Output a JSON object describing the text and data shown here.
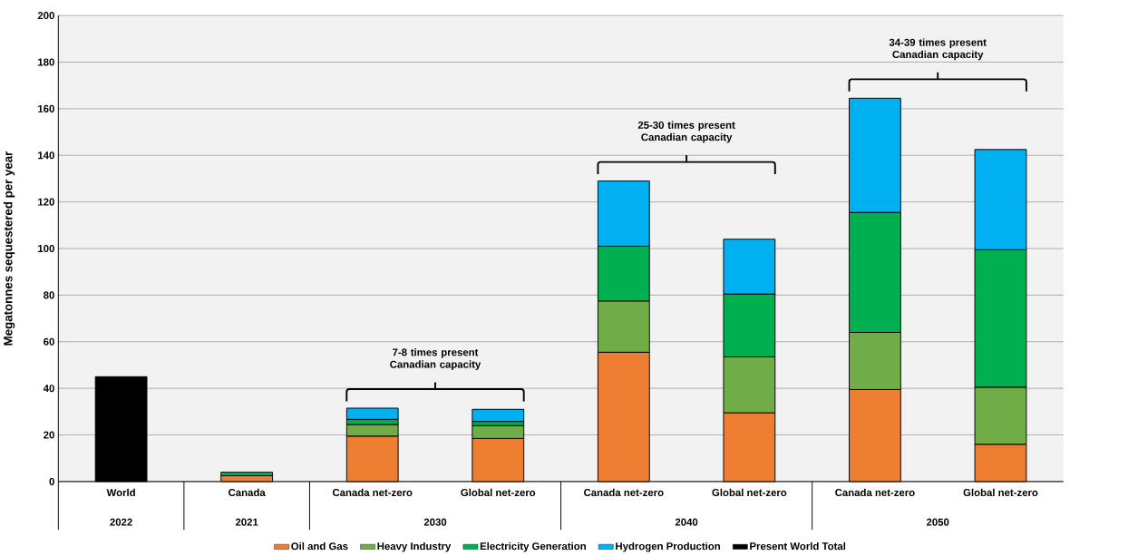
{
  "chart_data": {
    "type": "bar",
    "stacked": true,
    "ylabel": "Megatonnes sequestered per year",
    "categories": [
      "World",
      "Canada",
      "Canada net-zero",
      "Global net-zero",
      "Canada net-zero",
      "Global net-zero",
      "Canada net-zero",
      "Global net-zero"
    ],
    "series": [
      {
        "name": "Oil and Gas",
        "color": "#ed7d31",
        "values": [
          null,
          2.5,
          19.5,
          18.5,
          55.5,
          29.5,
          39.5,
          16
        ]
      },
      {
        "name": "Heavy Industry",
        "color": "#70ad47",
        "values": [
          null,
          null,
          5,
          5.5,
          22,
          24,
          24.5,
          24.5
        ]
      },
      {
        "name": "Electricity Generation",
        "color": "#00b050",
        "values": [
          null,
          1.5,
          2.2,
          1.8,
          23.5,
          27,
          51.5,
          59
        ]
      },
      {
        "name": "Hydrogen Production",
        "color": "#00b0f0",
        "values": [
          null,
          null,
          4.8,
          5.2,
          28,
          23.5,
          49,
          43
        ]
      },
      {
        "name": "Present World Total",
        "color": "#000000",
        "values": [
          45,
          null,
          null,
          null,
          null,
          null,
          null,
          null
        ]
      }
    ],
    "ylim": [
      0,
      200
    ],
    "yticks": [
      0,
      20,
      40,
      60,
      80,
      100,
      120,
      140,
      160,
      180,
      200
    ],
    "grid": "y",
    "legend": "bottom",
    "annotations": [
      "2022",
      "2021",
      "2030",
      "2040",
      "2050",
      "7-8 times present Canadian capacity",
      "25-30 times present Canadian capacity",
      "34-39 times present Canadian capacity"
    ]
  }
}
